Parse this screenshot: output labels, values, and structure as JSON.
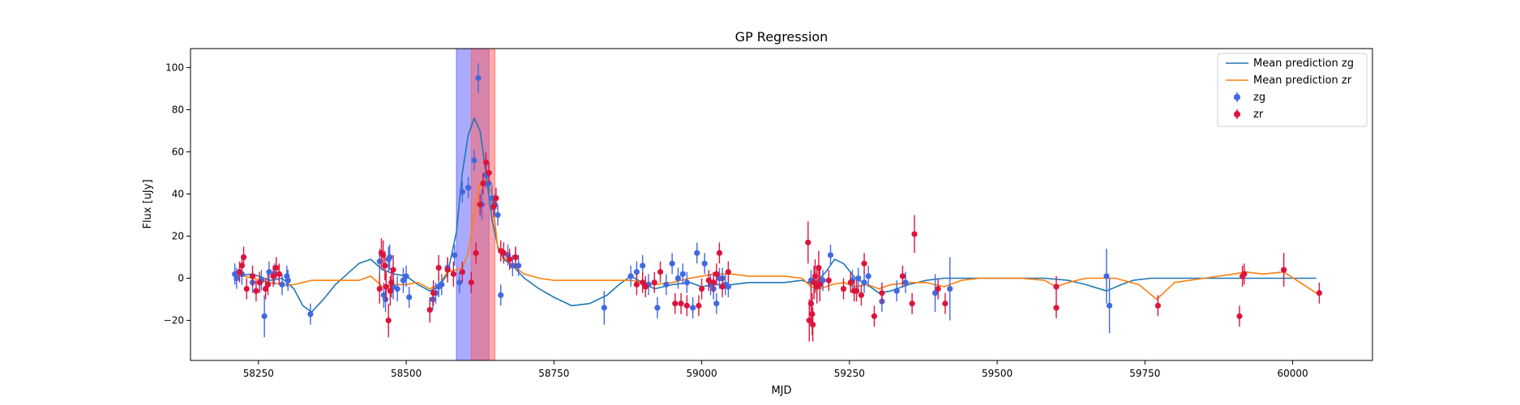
{
  "chart_data": {
    "type": "scatter",
    "title": "GP Regression",
    "xlabel": "MJD",
    "ylabel": "Flux [uJy]",
    "xlim": [
      58135,
      60135
    ],
    "ylim": [
      -39,
      109
    ],
    "xticks": [
      58250,
      58500,
      58750,
      59000,
      59250,
      59500,
      59750,
      60000
    ],
    "yticks": [
      -20,
      0,
      20,
      40,
      60,
      80,
      100
    ],
    "grid": false,
    "legend_position": "top-right",
    "colors": {
      "zg_points": "#4169e1",
      "zr_points": "#dc143c",
      "zg_line": "#1f77b4",
      "zr_line": "#ff7f0e",
      "span_zg": "#6464ff",
      "span_zr": "#ff6464"
    },
    "shaded_regions": [
      {
        "band": "zg",
        "x": [
          58585,
          58640
        ]
      },
      {
        "band": "zr",
        "x": [
          58610,
          58650
        ]
      }
    ],
    "legend": [
      {
        "key": "line_zg",
        "label": "Mean prediction zg",
        "kind": "line"
      },
      {
        "key": "line_zr",
        "label": "Mean prediction zr",
        "kind": "line"
      },
      {
        "key": "zg",
        "label": "zg",
        "kind": "errorbar"
      },
      {
        "key": "zr",
        "label": "zr",
        "kind": "errorbar"
      }
    ],
    "series": [
      {
        "name": "Mean prediction zg",
        "kind": "line",
        "color_key": "zg_line",
        "x": [
          58210,
          58240,
          58270,
          58290,
          58310,
          58325,
          58340,
          58360,
          58380,
          58400,
          58420,
          58440,
          58460,
          58480,
          58500,
          58520,
          58540,
          58555,
          58570,
          58585,
          58595,
          58605,
          58615,
          58625,
          58635,
          58645,
          58655,
          58665,
          58680,
          58700,
          58725,
          58750,
          58780,
          58810,
          58840,
          58860,
          58880,
          58900,
          58920,
          58950,
          58980,
          59000,
          59020,
          59050,
          59080,
          59110,
          59140,
          59170,
          59190,
          59210,
          59225,
          59240,
          59260,
          59280,
          59300,
          59320,
          59350,
          59380,
          59410,
          59440,
          59470,
          59500,
          59540,
          59580,
          59620,
          59650,
          59685,
          59710,
          59730,
          59760,
          59800,
          59850,
          59900,
          59950,
          60000,
          60040
        ],
        "y": [
          1,
          2,
          -1,
          0,
          -5,
          -13,
          -16,
          -10,
          -3,
          2,
          7,
          9,
          4,
          2,
          1,
          -3,
          -6,
          -4,
          2,
          22,
          50,
          68,
          76,
          70,
          50,
          28,
          15,
          9,
          6,
          0,
          -5,
          -9,
          -13,
          -12,
          -8,
          -3,
          1,
          -2,
          -5,
          -3,
          -2,
          -4,
          -3,
          -3,
          -2,
          -2,
          -2,
          -1,
          -3,
          3,
          9,
          7,
          0,
          -3,
          -7,
          -6,
          -3,
          -1,
          0,
          0,
          0,
          0,
          0,
          0,
          -1,
          -3,
          -6,
          -3,
          -1,
          0,
          0,
          0,
          0,
          0,
          0,
          0
        ]
      },
      {
        "name": "Mean prediction zr",
        "kind": "line",
        "color_key": "zr_line",
        "x": [
          58210,
          58240,
          58270,
          58290,
          58310,
          58325,
          58340,
          58360,
          58380,
          58400,
          58420,
          58440,
          58460,
          58480,
          58500,
          58520,
          58540,
          58555,
          58570,
          58585,
          58595,
          58605,
          58615,
          58625,
          58635,
          58645,
          58655,
          58665,
          58680,
          58700,
          58725,
          58750,
          58780,
          58810,
          58840,
          58860,
          58880,
          58900,
          58920,
          58950,
          58980,
          59000,
          59020,
          59050,
          59080,
          59110,
          59140,
          59170,
          59185,
          59200,
          59220,
          59240,
          59260,
          59280,
          59300,
          59320,
          59350,
          59380,
          59410,
          59440,
          59470,
          59500,
          59540,
          59580,
          59600,
          59620,
          59650,
          59700,
          59740,
          59770,
          59800,
          59850,
          59900,
          59920,
          59950,
          59985,
          60040
        ],
        "y": [
          2,
          0,
          -2,
          -3,
          -3,
          -2,
          -1,
          -1,
          -1,
          -1,
          -1,
          1,
          -4,
          -3,
          -3,
          -2,
          -5,
          -3,
          3,
          4,
          5,
          12,
          30,
          45,
          47,
          40,
          14,
          10,
          6,
          2,
          0,
          -1,
          -1,
          -1,
          -1,
          -1,
          -1,
          -2,
          -3,
          -2,
          0,
          1,
          2,
          2,
          1,
          1,
          1,
          0,
          -4,
          -5,
          -3,
          -2,
          -4,
          -3,
          -5,
          -3,
          -2,
          -2,
          -4,
          -1,
          0,
          0,
          0,
          -1,
          -4,
          -2,
          0,
          0,
          -3,
          -10,
          -2,
          0,
          2,
          3,
          2,
          3,
          -7
        ]
      },
      {
        "name": "zg",
        "kind": "errorbar",
        "color_key": "zg_points",
        "x": [
          58210,
          58213,
          58222,
          58240,
          58255,
          58260,
          58268,
          58277,
          58290,
          58298,
          58300,
          58338,
          58455,
          58462,
          58465,
          58470,
          58472,
          58478,
          58485,
          58495,
          58500,
          58505,
          58545,
          58550,
          58555,
          58560,
          58570,
          58582,
          58590,
          58595,
          58605,
          58615,
          58622,
          58628,
          58635,
          58640,
          58645,
          58650,
          58655,
          58660,
          58672,
          58680,
          58685,
          58690,
          58835,
          58880,
          58890,
          58900,
          58910,
          58925,
          58940,
          58950,
          58960,
          58968,
          58975,
          58985,
          58992,
          59005,
          59015,
          59020,
          59025,
          59030,
          59035,
          59040,
          59045,
          59185,
          59195,
          59205,
          59218,
          59255,
          59265,
          59275,
          59282,
          59305,
          59330,
          59345,
          59395,
          59420,
          59685,
          59690
        ],
        "y": [
          2,
          0,
          2,
          -2,
          -1,
          -18,
          3,
          2,
          -3,
          1,
          -1,
          -17,
          8,
          -8,
          -10,
          9,
          10,
          -4,
          -5,
          -1,
          1,
          -9,
          -10,
          -7,
          -4,
          -3,
          5,
          11,
          -2,
          41,
          43,
          56,
          95,
          35,
          49,
          45,
          38,
          35,
          30,
          -8,
          11,
          6,
          10,
          6,
          -14,
          1,
          3,
          6,
          -3,
          -14,
          -3,
          7,
          0,
          2,
          -2,
          -14,
          12,
          7,
          -3,
          -5,
          -12,
          0,
          0,
          -3,
          -4,
          -1,
          -3,
          -1,
          11,
          -1,
          0,
          -2,
          1,
          -11,
          -6,
          -2,
          -7,
          -5,
          1,
          -13
        ],
        "yerr": [
          5,
          5,
          5,
          5,
          5,
          10,
          5,
          5,
          5,
          5,
          5,
          5,
          6,
          6,
          6,
          6,
          6,
          6,
          6,
          6,
          5,
          5,
          5,
          5,
          5,
          5,
          5,
          5,
          5,
          5,
          5,
          5,
          7,
          7,
          6,
          6,
          6,
          5,
          5,
          5,
          5,
          5,
          5,
          5,
          8,
          5,
          5,
          5,
          5,
          5,
          5,
          5,
          5,
          5,
          5,
          5,
          5,
          5,
          5,
          5,
          5,
          5,
          5,
          5,
          5,
          5,
          5,
          5,
          5,
          5,
          5,
          5,
          5,
          5,
          5,
          5,
          9,
          15,
          13,
          13
        ]
      },
      {
        "name": "zr",
        "kind": "errorbar",
        "color_key": "zr_points",
        "x": [
          58218,
          58222,
          58225,
          58230,
          58240,
          58246,
          58252,
          58262,
          58266,
          58275,
          58280,
          58285,
          58455,
          58458,
          58461,
          58464,
          58466,
          58470,
          58473,
          58475,
          58478,
          58540,
          58546,
          58555,
          58570,
          58580,
          58595,
          58610,
          58618,
          58625,
          58630,
          58635,
          58640,
          58648,
          58652,
          58660,
          58665,
          58675,
          58685,
          58890,
          58900,
          58905,
          58920,
          58930,
          58955,
          58965,
          58975,
          58995,
          59000,
          59012,
          59020,
          59025,
          59030,
          59035,
          59045,
          59180,
          59182,
          59185,
          59187,
          59188,
          59190,
          59192,
          59195,
          59198,
          59200,
          59215,
          59240,
          59252,
          59258,
          59262,
          59270,
          59275,
          59292,
          59305,
          59340,
          59356,
          59360,
          59400,
          59412,
          59600,
          59600,
          59772,
          59910,
          59915,
          59918,
          59985,
          60045
        ],
        "y": [
          3,
          6,
          10,
          -5,
          1,
          -6,
          -2,
          -5,
          -3,
          1,
          5,
          2,
          -5,
          12,
          11,
          6,
          -4,
          -20,
          -6,
          -2,
          4,
          -15,
          -7,
          5,
          4,
          2,
          3,
          -2,
          12,
          35,
          45,
          55,
          50,
          34,
          38,
          13,
          12,
          9,
          10,
          -3,
          -2,
          -4,
          -2,
          3,
          -12,
          -12,
          -13,
          -13,
          -5,
          -1,
          -2,
          2,
          12,
          -4,
          3,
          17,
          -20,
          -12,
          -17,
          -22,
          -2,
          1,
          -4,
          5,
          -3,
          -1,
          -5,
          -2,
          -6,
          -6,
          -8,
          7,
          -18,
          -7,
          1,
          -12,
          21,
          -5,
          -12,
          -14,
          -4,
          -13,
          -18,
          1,
          2,
          4,
          -7
        ],
        "yerr": [
          5,
          5,
          5,
          5,
          5,
          5,
          5,
          5,
          5,
          5,
          5,
          5,
          7,
          7,
          7,
          7,
          7,
          8,
          7,
          7,
          7,
          6,
          6,
          6,
          6,
          6,
          5,
          5,
          5,
          5,
          5,
          5,
          5,
          5,
          5,
          5,
          5,
          5,
          5,
          5,
          5,
          5,
          5,
          5,
          5,
          5,
          5,
          5,
          5,
          5,
          5,
          5,
          5,
          5,
          5,
          10,
          10,
          10,
          10,
          8,
          8,
          8,
          8,
          8,
          8,
          5,
          5,
          5,
          5,
          5,
          5,
          5,
          5,
          5,
          5,
          5,
          9,
          5,
          5,
          5,
          5,
          5,
          5,
          5,
          5,
          8,
          5
        ]
      }
    ]
  }
}
